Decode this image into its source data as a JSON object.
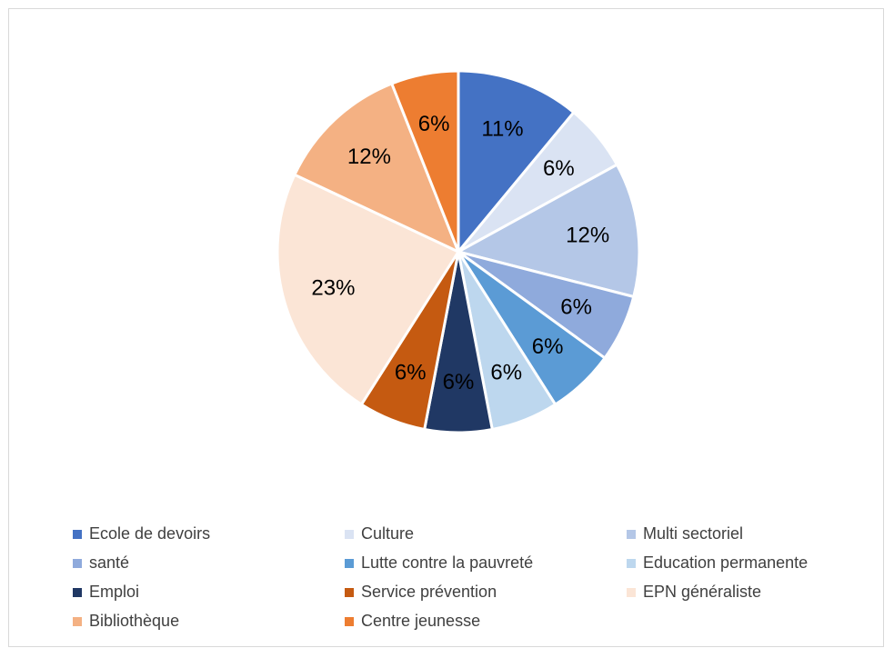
{
  "chart_data": {
    "type": "pie",
    "title": "",
    "slices": [
      {
        "label": "Ecole de devoirs",
        "value": 11,
        "display": "11%",
        "color": "#4472c4"
      },
      {
        "label": "Culture",
        "value": 6,
        "display": "6%",
        "color": "#dae3f3"
      },
      {
        "label": "Multi sectoriel",
        "value": 12,
        "display": "12%",
        "color": "#b4c7e7"
      },
      {
        "label": "santé",
        "value": 6,
        "display": "6%",
        "color": "#8faadc"
      },
      {
        "label": "Lutte contre la pauvreté",
        "value": 6,
        "display": "6%",
        "color": "#5b9bd5"
      },
      {
        "label": "Education permanente",
        "value": 6,
        "display": "6%",
        "color": "#bdd7ee"
      },
      {
        "label": "Emploi",
        "value": 6,
        "display": "6%",
        "color": "#203864"
      },
      {
        "label": "Service prévention",
        "value": 6,
        "display": "6%",
        "color": "#c55a11"
      },
      {
        "label": "EPN généraliste",
        "value": 23,
        "display": "23%",
        "color": "#fbe5d6"
      },
      {
        "label": "Bibliothèque",
        "value": 12,
        "display": "12%",
        "color": "#f4b183"
      },
      {
        "label": "Centre jeunesse",
        "value": 6,
        "display": "6%",
        "color": "#ed7d31"
      }
    ],
    "legend_position": "bottom",
    "data_labels": "inside"
  }
}
